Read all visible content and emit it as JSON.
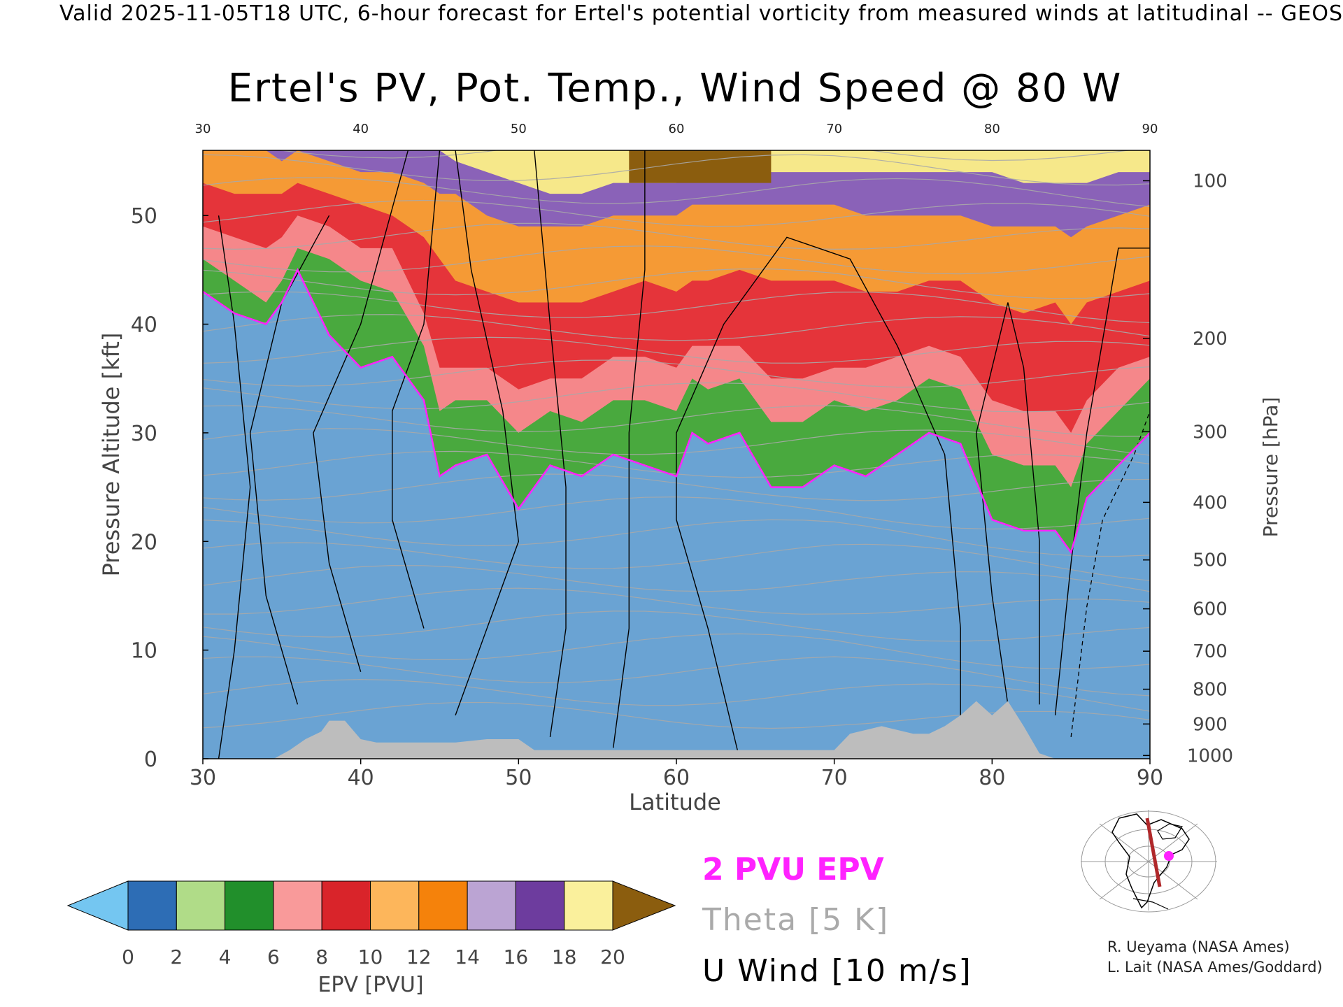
{
  "header": {
    "valid_line": "Valid 2025-11-05T18 UTC, 6-hour forecast for Ertel's potential vorticity from measured winds at latitudinal -- GEOS"
  },
  "chart_data": {
    "type": "heatmap",
    "title": "Ertel's PV, Pot. Temp., Wind Speed @ 80 W",
    "xlabel": "Latitude",
    "ylabel": "Pressure Altitude [kft]",
    "y2label": "Pressure [hPa]",
    "xlim": [
      30,
      90
    ],
    "ylim": [
      0,
      56
    ],
    "x_ticks": [
      "30",
      "40",
      "50",
      "60",
      "70",
      "80",
      "90"
    ],
    "y_ticks": [
      "0",
      "10",
      "20",
      "30",
      "40",
      "50"
    ],
    "pressure_ticks": [
      {
        "label": "100",
        "kft": 53.2
      },
      {
        "label": "200",
        "kft": 38.7
      },
      {
        "label": "300",
        "kft": 30.1
      },
      {
        "label": "400",
        "kft": 23.6
      },
      {
        "label": "500",
        "kft": 18.3
      },
      {
        "label": "600",
        "kft": 13.8
      },
      {
        "label": "700",
        "kft": 9.9
      },
      {
        "label": "800",
        "kft": 6.4
      },
      {
        "label": "900",
        "kft": 3.2
      },
      {
        "label": "1000",
        "kft": 0.3
      }
    ],
    "tropopause_2pvu_kft": {
      "lat": [
        30,
        32,
        34,
        35,
        36,
        38,
        40,
        42,
        44,
        45,
        46,
        48,
        50,
        52,
        54,
        56,
        58,
        60,
        61,
        62,
        64,
        66,
        68,
        70,
        72,
        74,
        76,
        78,
        80,
        82,
        84,
        85,
        86,
        88,
        90
      ],
      "kft": [
        43,
        41,
        40,
        42,
        45,
        39,
        36,
        37,
        33,
        26,
        27,
        28,
        23,
        27,
        26,
        28,
        27,
        26,
        30,
        29,
        30,
        25,
        25,
        27,
        26,
        28,
        30,
        29,
        22,
        21,
        21,
        19,
        24,
        27,
        30
      ]
    },
    "pv_band_top_kft": {
      "pv4": [
        46,
        44,
        42,
        44,
        47,
        46,
        44,
        43,
        38,
        32,
        33,
        33,
        30,
        32,
        31,
        33,
        33,
        32,
        35,
        34,
        35,
        31,
        31,
        33,
        32,
        33,
        35,
        34,
        28,
        27,
        27,
        25,
        29,
        32,
        35
      ],
      "pv6": [
        49,
        48,
        47,
        48,
        50,
        49,
        47,
        47,
        41,
        36,
        36,
        36,
        34,
        35,
        35,
        37,
        37,
        36,
        38,
        38,
        38,
        35,
        35,
        36,
        36,
        37,
        38,
        37,
        33,
        32,
        32,
        30,
        33,
        36,
        37
      ],
      "pv10": [
        53,
        52,
        52,
        52,
        53,
        52,
        51,
        50,
        48,
        46,
        44,
        43,
        42,
        42,
        42,
        43,
        44,
        43,
        44,
        44,
        45,
        44,
        44,
        44,
        43,
        43,
        44,
        44,
        42,
        41,
        42,
        40,
        42,
        43,
        44
      ],
      "pv14": [
        56,
        56,
        56,
        55,
        56,
        55,
        54,
        54,
        53,
        52,
        52,
        50,
        49,
        49,
        49,
        50,
        50,
        50,
        51,
        51,
        51,
        51,
        51,
        51,
        50,
        50,
        50,
        50,
        49,
        49,
        49,
        48,
        49,
        50,
        51
      ],
      "pv18": [
        56,
        56,
        56,
        56,
        56,
        56,
        56,
        56,
        56,
        56,
        55,
        54,
        53,
        52,
        52,
        53,
        53,
        53,
        54,
        54,
        54,
        54,
        54,
        54,
        54,
        54,
        54,
        54,
        54,
        53,
        53,
        53,
        53,
        54,
        54
      ]
    },
    "pv_max_region": {
      "lat": [
        57,
        66
      ],
      "kft_bottom": 53
    },
    "topography_kft": {
      "lat": [
        30,
        34.5,
        35.5,
        36.5,
        37.5,
        38,
        39,
        40,
        41,
        42,
        43,
        44,
        45,
        46,
        48,
        50,
        51,
        52,
        55,
        60,
        65,
        70,
        71,
        73,
        75,
        76,
        77,
        78,
        79,
        80,
        81,
        82,
        83,
        84,
        90
      ],
      "kft": [
        0,
        0,
        0.8,
        1.8,
        2.5,
        3.5,
        3.5,
        1.8,
        1.5,
        1.5,
        1.5,
        1.5,
        1.5,
        1.5,
        1.8,
        1.8,
        0.8,
        0.8,
        0.8,
        0.8,
        0.8,
        0.8,
        2.3,
        3,
        2.3,
        2.3,
        3,
        4,
        5.3,
        4,
        5.3,
        3,
        0.5,
        0,
        0
      ]
    },
    "colorbar": {
      "label": "EPV [PVU]",
      "ticks": [
        "0",
        "2",
        "4",
        "6",
        "8",
        "10",
        "12",
        "14",
        "16",
        "18",
        "20"
      ],
      "colors": [
        "#74c6f1",
        "#2d6db5",
        "#b0dc88",
        "#218f2b",
        "#f99a9a",
        "#d9242a",
        "#fdb65b",
        "#f5820b",
        "#bba4d3",
        "#6d3c9e",
        "#faf09c",
        "#8b5d0e"
      ]
    },
    "legend": {
      "pvu": "2 PVU EPV",
      "theta": "Theta [5 K]",
      "uwind": "U Wind [10 m/s]"
    },
    "credits": [
      "R. Ueyama (NASA Ames)",
      "L. Lait (NASA Ames/Goddard)"
    ],
    "colors": {
      "tropopause": "#ff22ff",
      "theta": "#a8a8a8",
      "wind": "#000000",
      "ground": "#bdbdbd"
    }
  }
}
